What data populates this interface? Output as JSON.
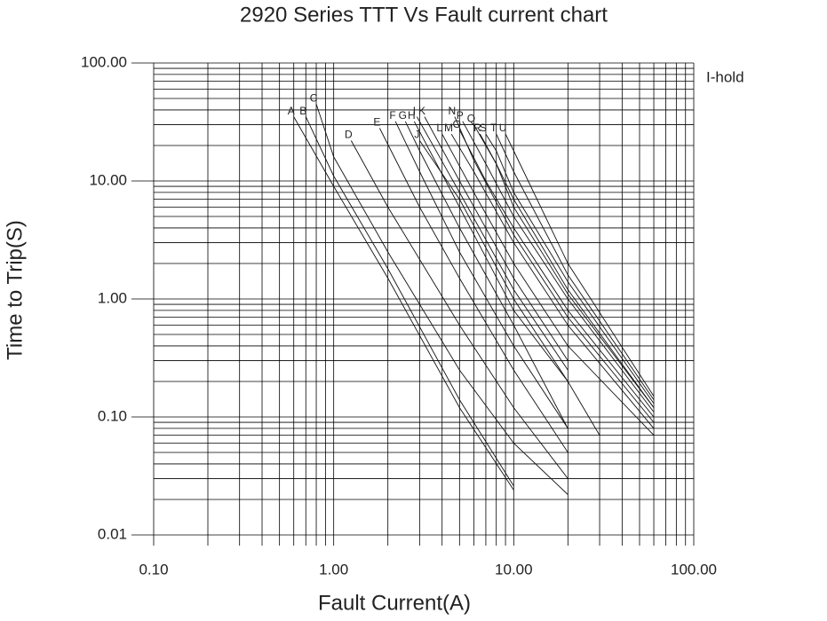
{
  "chart_data": {
    "type": "line",
    "title": "2920 Series TTT Vs Fault current chart",
    "x_label": "Fault Current(A)",
    "y_label": "Time to Trip(S)",
    "annotation": "I-hold",
    "log_x": true,
    "log_y": true,
    "grid": true,
    "xlim": [
      0.1,
      100
    ],
    "ylim": [
      0.01,
      100
    ],
    "xticks": [
      {
        "value": 0.1,
        "label": "0.10"
      },
      {
        "value": 1,
        "label": "1.00"
      },
      {
        "value": 10,
        "label": "10.00"
      },
      {
        "value": 100,
        "label": "100.00"
      }
    ],
    "yticks": [
      0.01,
      {
        "value": 0.1,
        "label": "0.10"
      },
      {
        "value": 1,
        "label": "1.00"
      },
      {
        "value": 10,
        "label": "10.00"
      },
      {
        "value": 100,
        "label": "100.00"
      }
    ],
    "series": [
      {
        "name": "A",
        "color": "#111111",
        "x": [
          0.6,
          1,
          2,
          5,
          10
        ],
        "values": [
          35,
          9,
          1.5,
          0.12,
          0.024
        ]
      },
      {
        "name": "B",
        "color": "#111111",
        "x": [
          0.7,
          1,
          2,
          5,
          10
        ],
        "values": [
          35,
          11,
          1.8,
          0.14,
          0.026
        ]
      },
      {
        "name": "C",
        "color": "#111111",
        "x": [
          0.8,
          1,
          2,
          5,
          10,
          20
        ],
        "values": [
          45,
          16,
          2.5,
          0.25,
          0.06,
          0.022
        ]
      },
      {
        "name": "D",
        "color": "#111111",
        "x": [
          1.25,
          2,
          5,
          10,
          20
        ],
        "values": [
          22,
          6,
          0.6,
          0.12,
          0.03
        ]
      },
      {
        "name": "E",
        "color": "#111111",
        "x": [
          1.8,
          3,
          5,
          10,
          20
        ],
        "values": [
          28,
          6,
          1.5,
          0.25,
          0.05
        ]
      },
      {
        "name": "F",
        "color": "#111111",
        "x": [
          2.2,
          3,
          5,
          10,
          20
        ],
        "values": [
          32,
          12,
          2.5,
          0.4,
          0.08
        ]
      },
      {
        "name": "G",
        "color": "#111111",
        "x": [
          2.5,
          3,
          5,
          10,
          20
        ],
        "values": [
          32,
          18,
          4,
          0.6,
          0.08
        ]
      },
      {
        "name": "H",
        "color": "#111111",
        "x": [
          2.8,
          5,
          10,
          20,
          30
        ],
        "values": [
          32,
          6,
          0.8,
          0.2,
          0.07
        ]
      },
      {
        "name": "I",
        "color": "#111111",
        "x": [
          2.9,
          5,
          10,
          20
        ],
        "values": [
          35,
          8,
          1.2,
          0.25
        ]
      },
      {
        "name": "J",
        "color": "#111111",
        "x": [
          3,
          5,
          10,
          20
        ],
        "values": [
          22,
          7,
          1,
          0.2
        ]
      },
      {
        "name": "K",
        "color": "#111111",
        "x": [
          3.2,
          5,
          10,
          20
        ],
        "values": [
          35,
          10,
          1.5,
          0.3
        ]
      },
      {
        "name": "L",
        "color": "#111111",
        "x": [
          4,
          6,
          10,
          20,
          60
        ],
        "values": [
          25,
          8,
          2,
          0.4,
          0.07
        ]
      },
      {
        "name": "M",
        "color": "#111111",
        "x": [
          4.5,
          6,
          10,
          20,
          60
        ],
        "values": [
          25,
          12,
          3,
          0.6,
          0.08
        ]
      },
      {
        "name": "N",
        "color": "#111111",
        "x": [
          4.7,
          6,
          10,
          20,
          60
        ],
        "values": [
          35,
          15,
          3.5,
          0.7,
          0.09
        ]
      },
      {
        "name": "O",
        "color": "#111111",
        "x": [
          5,
          7,
          10,
          20,
          60
        ],
        "values": [
          27,
          10,
          4,
          0.8,
          0.1
        ]
      },
      {
        "name": "P",
        "color": "#111111",
        "x": [
          5.2,
          7,
          10,
          20,
          60
        ],
        "values": [
          32,
          14,
          5,
          1,
          0.11
        ]
      },
      {
        "name": "Q",
        "color": "#111111",
        "x": [
          6,
          8,
          10,
          20,
          60
        ],
        "values": [
          30,
          14,
          6,
          1.1,
          0.12
        ]
      },
      {
        "name": "R",
        "color": "#111111",
        "x": [
          6.5,
          8,
          10,
          20,
          60
        ],
        "values": [
          25,
          14,
          7,
          1.2,
          0.12
        ]
      },
      {
        "name": "S",
        "color": "#111111",
        "x": [
          7,
          8,
          10,
          20,
          60
        ],
        "values": [
          25,
          18,
          8,
          1.4,
          0.13
        ]
      },
      {
        "name": "T",
        "color": "#111111",
        "x": [
          8,
          10,
          20,
          60
        ],
        "values": [
          25,
          12,
          1.6,
          0.14
        ]
      },
      {
        "name": "U",
        "color": "#111111",
        "x": [
          9,
          10,
          20,
          60
        ],
        "values": [
          25,
          18,
          2,
          0.15
        ]
      }
    ]
  }
}
